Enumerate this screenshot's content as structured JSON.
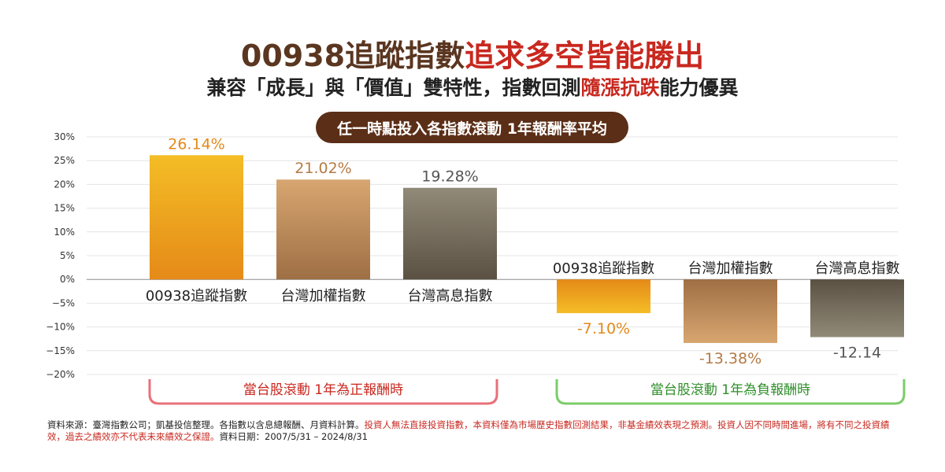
{
  "title": {
    "part1": "00938追蹤指數",
    "part2": "追求多空皆能勝出"
  },
  "subtitle": {
    "part1": "兼容「成長」與「價值」雙特性，指數回測",
    "part2": "隨漲抗跌",
    "part3": "能力優異"
  },
  "pill_label": "任一時點投入各指數滾動 1年報酬率平均",
  "chart_data": {
    "type": "bar",
    "ylim": [
      -20,
      30
    ],
    "yticks": [
      "30%",
      "25%",
      "20%",
      "15%",
      "10%",
      "5%",
      "0%",
      "−5%",
      "−10%",
      "−15%",
      "−20%"
    ],
    "grid": true,
    "groups": [
      {
        "label": "當台股滾動 1年為正報酬時",
        "bars": [
          {
            "category": "00938追蹤指數",
            "value": 26.14,
            "label": "26.14%",
            "color": "orange"
          },
          {
            "category": "台灣加權指數",
            "value": 21.02,
            "label": "21.02%",
            "color": "tan"
          },
          {
            "category": "台灣高息指數",
            "value": 19.28,
            "label": "19.28%",
            "color": "gray"
          }
        ]
      },
      {
        "label": "當台股滾動 1年為負報酬時",
        "bars": [
          {
            "category": "00938追蹤指數",
            "value": -7.1,
            "label": "-7.10%",
            "color": "orange"
          },
          {
            "category": "台灣加權指數",
            "value": -13.38,
            "label": "-13.38%",
            "color": "tan"
          },
          {
            "category": "台灣高息指數",
            "value": -12.14,
            "label": "-12.14",
            "color": "gray"
          }
        ]
      }
    ]
  },
  "footnote": {
    "black": "資料來源：臺灣指數公司；凱基投信整理。各指數以含息總報酬、月資料計算。",
    "red": "投資人無法直接投資指數，本資料僅為市場歷史指數回測結果，非基金績效表現之預測。投資人因不同時間進場，將有不同之投資績效，過去之績效亦不代表未來績效之保證。",
    "black2": "資料日期：2007/5/31 – 2024/8/31"
  },
  "colors": {
    "orange": "#e8961c",
    "tan": "#b8885a",
    "gray": "#6e6454",
    "red_bracket": "#e9707a",
    "green_bracket": "#7ccc6a",
    "brand_brown": "#5a3620",
    "accent_red": "#c8281f"
  }
}
